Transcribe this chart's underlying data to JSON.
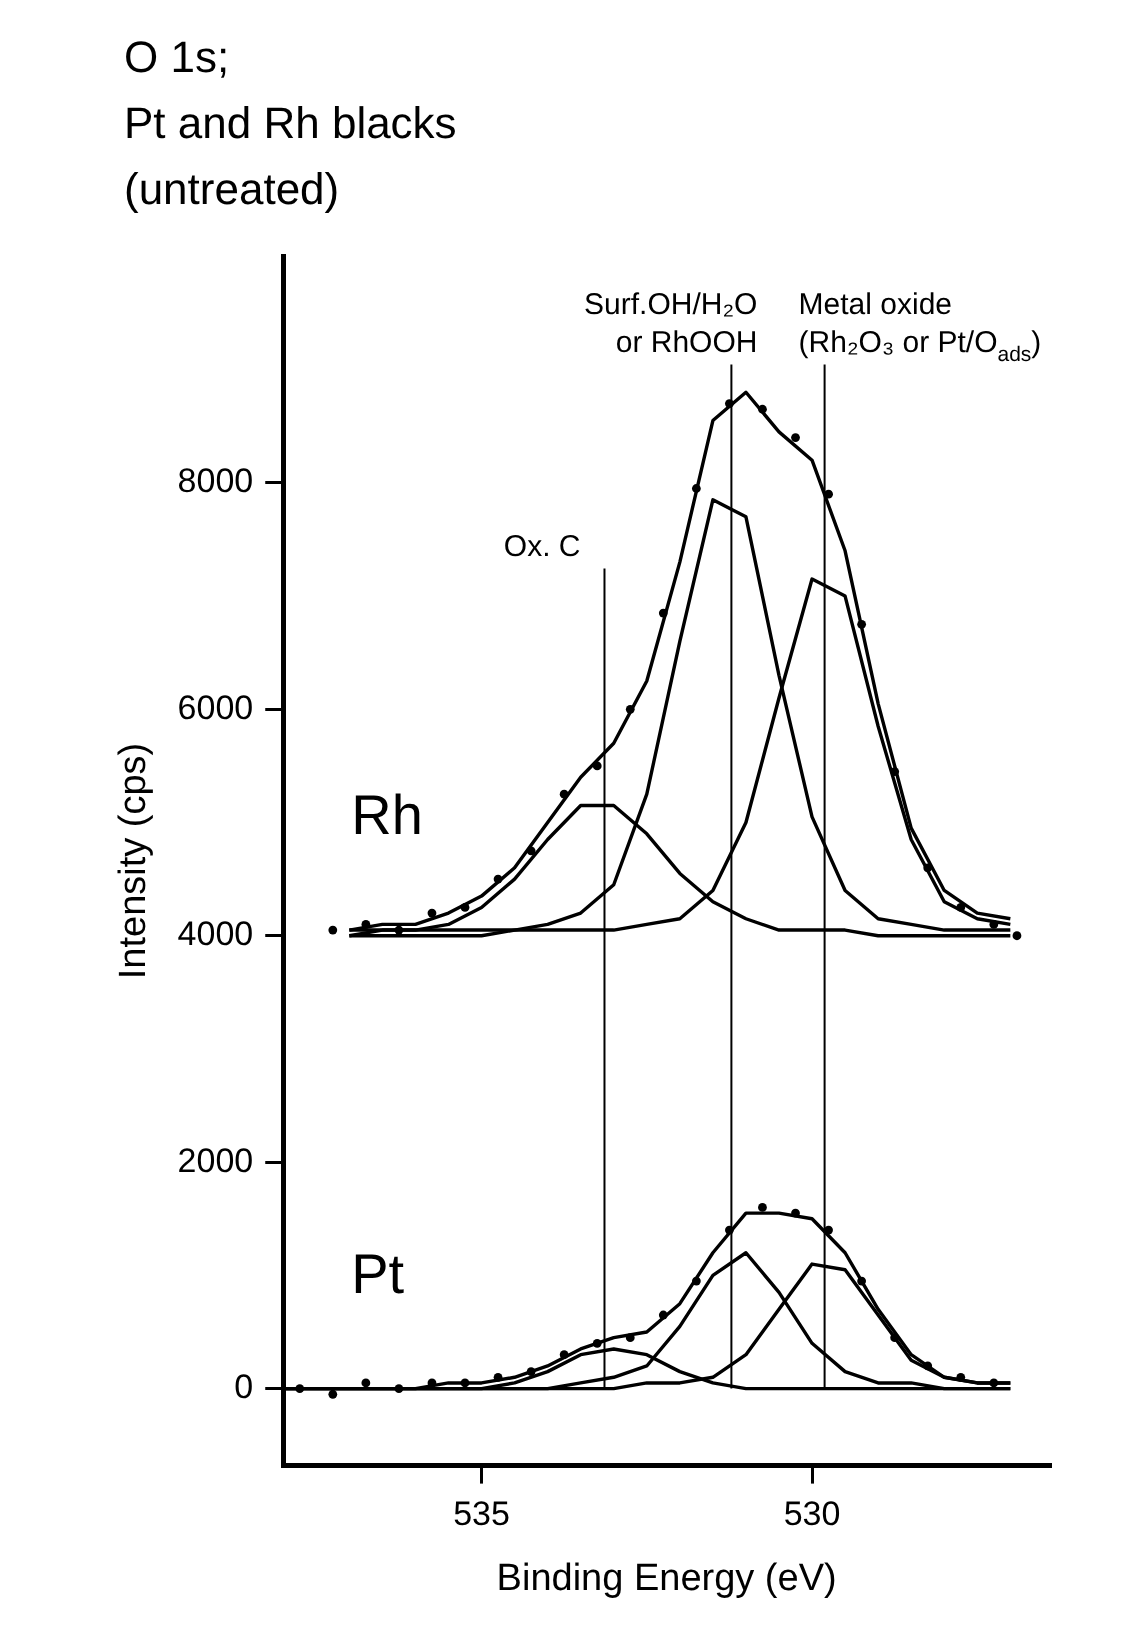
{
  "chart_data": {
    "type": "line",
    "title": "O 1s;\nPt and Rh blacks\n(untreated)",
    "xlabel": "Binding Energy (eV)",
    "ylabel": "Intensity (cps)",
    "xlim": [
      538,
      526.4
    ],
    "xticks": [
      535,
      530
    ],
    "ylim": [
      -680,
      10000
    ],
    "yticks": [
      0,
      2000,
      4000,
      6000,
      8000
    ],
    "grid": false,
    "legend": false,
    "ref_lines": [
      {
        "axis": "x",
        "value": 533.14,
        "label": "Ox. C"
      },
      {
        "axis": "x",
        "value": 531.22,
        "label": "Surf.OH/H₂O\nor RhOOH"
      },
      {
        "axis": "x",
        "value": 529.81,
        "label": "Metal oxide\n(Rh₂O₃ or Pt/O$_{ads}$)"
      }
    ],
    "series": [
      {
        "type": "scatter",
        "marker": "circle",
        "color": "#000000",
        "x": [
          537.25,
          536.75,
          536.25,
          535.75,
          535.25,
          534.75,
          534.25,
          533.75,
          533.25,
          532.75,
          532.25,
          531.75,
          531.25,
          530.75,
          530.25,
          529.75,
          529.25,
          528.75,
          528.25,
          527.75,
          527.25,
          526.9
        ],
        "values": [
          4050,
          4100,
          4050,
          4200,
          4250,
          4500,
          4750,
          5250,
          5500,
          6000,
          6850,
          7950,
          8700,
          8650,
          8400,
          7900,
          6750,
          5450,
          4600,
          4250,
          4100,
          4000
        ]
      },
      {
        "type": "line",
        "name": "Rh",
        "color": "#000000",
        "x": [
          537,
          536.5,
          536,
          535.5,
          535,
          534.5,
          534,
          533.5,
          533,
          532.5,
          532,
          531.5,
          531,
          530.5,
          530,
          529.5,
          529,
          528.5,
          528,
          527.5,
          527
        ],
        "values": [
          4050,
          4100,
          4100,
          4200,
          4350,
          4600,
          5000,
          5400,
          5700,
          6250,
          7300,
          8550,
          8800,
          8450,
          8200,
          7400,
          6050,
          4950,
          4400,
          4200,
          4150
        ]
      },
      {
        "type": "line",
        "color": "#000000",
        "x": [
          537,
          536.5,
          536,
          535.5,
          535,
          534.5,
          534,
          533.5,
          533,
          532.5,
          532,
          531.5,
          531,
          530.5,
          530,
          529.5,
          529,
          528.5,
          528,
          527.5,
          527
        ],
        "values": [
          4050,
          4050,
          4050,
          4100,
          4250,
          4500,
          4850,
          5150,
          5150,
          4900,
          4550,
          4300,
          4150,
          4050,
          4050,
          4050,
          4000,
          4000,
          4000,
          4000,
          4000
        ]
      },
      {
        "type": "line",
        "color": "#000000",
        "x": [
          537,
          536.5,
          536,
          535.5,
          535,
          534.5,
          534,
          533.5,
          533,
          532.5,
          532,
          531.5,
          531,
          530.5,
          530,
          529.5,
          529,
          528.5,
          528,
          527.5,
          527
        ],
        "values": [
          4000,
          4050,
          4050,
          4050,
          4050,
          4050,
          4100,
          4200,
          4450,
          5250,
          6600,
          7850,
          7700,
          6300,
          5050,
          4400,
          4150,
          4100,
          4050,
          4050,
          4050
        ]
      },
      {
        "type": "line",
        "color": "#000000",
        "x": [
          537,
          536.5,
          536,
          535.5,
          535,
          534.5,
          534,
          533.5,
          533,
          532.5,
          532,
          531.5,
          531,
          530.5,
          530,
          529.5,
          529,
          528.5,
          528,
          527.5,
          527
        ],
        "values": [
          4000,
          4000,
          4000,
          4000,
          4000,
          4050,
          4050,
          4050,
          4050,
          4100,
          4150,
          4400,
          5000,
          6100,
          7150,
          7000,
          5850,
          4850,
          4300,
          4150,
          4100
        ]
      },
      {
        "type": "scatter",
        "marker": "circle",
        "color": "#000000",
        "x": [
          537.75,
          537.25,
          536.75,
          536.25,
          535.75,
          535.25,
          534.75,
          534.25,
          533.75,
          533.25,
          532.75,
          532.25,
          531.75,
          531.25,
          530.75,
          530.25,
          529.75,
          529.25,
          528.75,
          528.25,
          527.75,
          527.25
        ],
        "values": [
          0,
          -50,
          50,
          0,
          50,
          50,
          100,
          150,
          300,
          400,
          450,
          650,
          950,
          1400,
          1600,
          1550,
          1400,
          950,
          450,
          200,
          100,
          50
        ]
      },
      {
        "type": "line",
        "name": "Pt",
        "color": "#000000",
        "x": [
          538,
          537.5,
          537,
          536.5,
          536,
          535.5,
          535,
          534.5,
          534,
          533.5,
          533,
          532.5,
          532,
          531.5,
          531,
          530.5,
          530,
          529.5,
          529,
          528.5,
          528,
          527.5,
          527
        ],
        "values": [
          0,
          0,
          0,
          0,
          0,
          50,
          50,
          100,
          200,
          350,
          450,
          500,
          750,
          1200,
          1550,
          1550,
          1500,
          1200,
          700,
          300,
          100,
          50,
          50
        ]
      },
      {
        "type": "line",
        "color": "#000000",
        "x": [
          538,
          537.5,
          537,
          536.5,
          536,
          535.5,
          535,
          534.5,
          534,
          533.5,
          533,
          532.5,
          532,
          531.5,
          531,
          530.5,
          530,
          529.5,
          529,
          528.5,
          528,
          527.5,
          527
        ],
        "values": [
          0,
          0,
          0,
          0,
          0,
          0,
          0,
          50,
          150,
          300,
          350,
          300,
          150,
          50,
          0,
          0,
          0,
          0,
          0,
          0,
          0,
          0,
          0
        ]
      },
      {
        "type": "line",
        "color": "#000000",
        "x": [
          538,
          537.5,
          537,
          536.5,
          536,
          535.5,
          535,
          534.5,
          534,
          533.5,
          533,
          532.5,
          532,
          531.5,
          531,
          530.5,
          530,
          529.5,
          529,
          528.5,
          528,
          527.5,
          527
        ],
        "values": [
          0,
          0,
          0,
          0,
          0,
          0,
          0,
          0,
          0,
          50,
          100,
          200,
          550,
          1000,
          1200,
          850,
          400,
          150,
          50,
          50,
          0,
          0,
          0
        ]
      },
      {
        "type": "line",
        "color": "#000000",
        "x": [
          538,
          537.5,
          537,
          536.5,
          536,
          535.5,
          535,
          534.5,
          534,
          533.5,
          533,
          532.5,
          532,
          531.5,
          531,
          530.5,
          530,
          529.5,
          529,
          528.5,
          528,
          527.5,
          527
        ],
        "values": [
          0,
          0,
          0,
          0,
          0,
          0,
          0,
          0,
          0,
          0,
          0,
          50,
          50,
          100,
          300,
          700,
          1100,
          1050,
          650,
          250,
          100,
          50,
          50
        ]
      }
    ]
  }
}
